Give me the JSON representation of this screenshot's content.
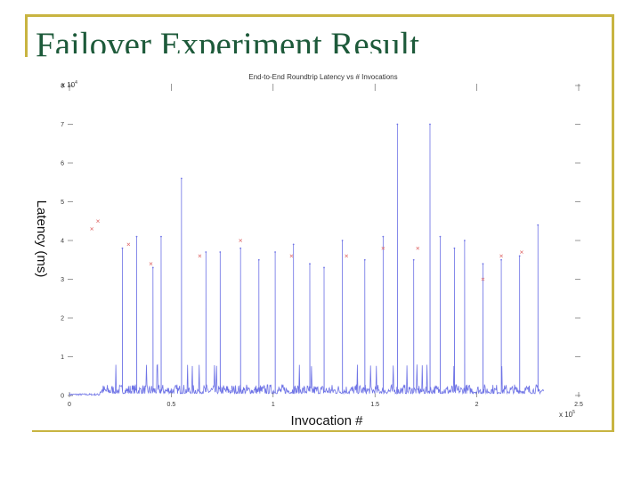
{
  "slide": {
    "title": "Failover Experiment Result"
  },
  "colors": {
    "frame": "#c8b441",
    "title": "#1d5a3a",
    "series": "#6f74e6",
    "marker": "#e07070",
    "axis": "#555555"
  },
  "chart_data": {
    "type": "line",
    "title": "End-to-End Roundtrip Latency vs # Invocations",
    "xlabel": "Invocation #",
    "ylabel": "Latency (ms)",
    "x_multiplier": "x 10",
    "x_multiplier_exp": "5",
    "y_multiplier": "x 10",
    "y_multiplier_exp": "4",
    "xlim": [
      0,
      2.5
    ],
    "ylim": [
      0,
      8
    ],
    "x_ticks": [
      0,
      0.5,
      1,
      1.5,
      2,
      2.5
    ],
    "x_tick_labels": [
      "0",
      "0.5",
      "1",
      "1.5",
      "2",
      "2.5"
    ],
    "y_ticks": [
      0,
      1,
      2,
      3,
      4,
      5,
      6,
      7,
      8
    ],
    "y_tick_labels": [
      "0",
      "1",
      "2",
      "3",
      "4",
      "5",
      "6",
      "7",
      "8"
    ],
    "grid": false,
    "series": [
      {
        "spikes": [
          [
            0.26,
            3.8
          ],
          [
            0.33,
            4.1
          ],
          [
            0.41,
            3.3
          ],
          [
            0.45,
            4.1
          ],
          [
            0.55,
            5.6
          ],
          [
            0.67,
            3.7
          ],
          [
            0.74,
            3.7
          ],
          [
            0.84,
            3.8
          ],
          [
            0.93,
            3.5
          ],
          [
            1.01,
            3.7
          ],
          [
            1.1,
            3.9
          ],
          [
            1.18,
            3.4
          ],
          [
            1.25,
            3.3
          ],
          [
            1.34,
            4.0
          ],
          [
            1.45,
            3.5
          ],
          [
            1.54,
            4.1
          ],
          [
            1.61,
            7.0
          ],
          [
            1.69,
            3.5
          ],
          [
            1.77,
            7.0
          ],
          [
            1.82,
            4.1
          ],
          [
            1.89,
            3.8
          ],
          [
            1.94,
            4.0
          ],
          [
            2.03,
            3.4
          ],
          [
            2.12,
            3.5
          ],
          [
            2.21,
            3.6
          ],
          [
            2.3,
            4.4
          ]
        ],
        "baseline_range": [
          0.0,
          2.33
        ],
        "noise_level": 0.25
      }
    ],
    "markers": [
      [
        0.11,
        4.3
      ],
      [
        0.14,
        4.5
      ],
      [
        0.29,
        3.9
      ],
      [
        0.4,
        3.4
      ],
      [
        0.64,
        3.6
      ],
      [
        0.84,
        4.0
      ],
      [
        1.09,
        3.6
      ],
      [
        1.36,
        3.6
      ],
      [
        1.54,
        3.8
      ],
      [
        1.71,
        3.8
      ],
      [
        2.03,
        3.0
      ],
      [
        2.12,
        3.6
      ],
      [
        2.22,
        3.7
      ]
    ]
  }
}
